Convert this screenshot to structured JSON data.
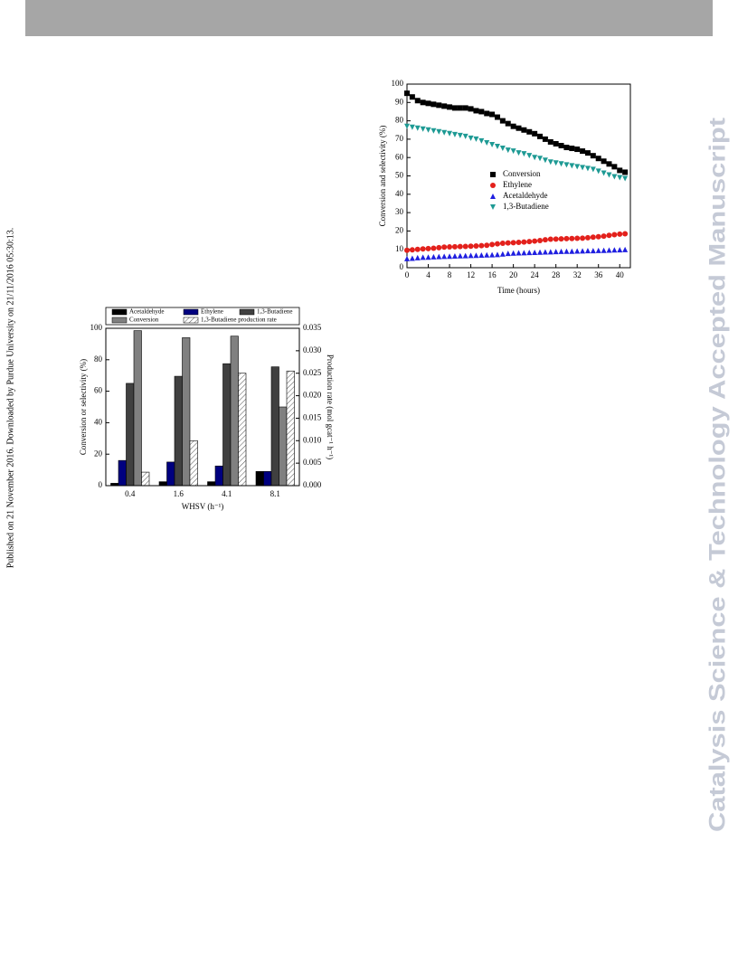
{
  "sidebar_text": "Published on 21 November 2016. Downloaded by Purdue University on 21/11/2016 05:30:13.",
  "watermark": "Catalysis Science & Technology Accepted Manuscript",
  "chart_data": [
    {
      "type": "scatter",
      "x_label": "Time (hours)",
      "y_label": "Conversion and selectivity (%)",
      "x": [
        0,
        1,
        2,
        3,
        4,
        5,
        6,
        7,
        8,
        9,
        10,
        11,
        12,
        13,
        14,
        15,
        16,
        17,
        18,
        19,
        20,
        21,
        22,
        23,
        24,
        25,
        26,
        27,
        28,
        29,
        30,
        31,
        32,
        33,
        34,
        35,
        36,
        37,
        38,
        39,
        40,
        41
      ],
      "xlim": [
        0,
        42
      ],
      "xticks": [
        0,
        4,
        8,
        12,
        16,
        20,
        24,
        28,
        32,
        36,
        40
      ],
      "ylim": [
        0,
        100
      ],
      "yticks": [
        0,
        10,
        20,
        30,
        40,
        50,
        60,
        70,
        80,
        90,
        100
      ],
      "legend": "center",
      "series": [
        {
          "name": "Conversion",
          "color": "#000000",
          "marker": "square",
          "values": [
            95,
            93,
            91,
            90,
            89.5,
            89,
            88.5,
            88,
            87.5,
            87,
            87,
            87,
            86.5,
            85.5,
            85,
            84,
            83.5,
            82,
            80,
            78.5,
            77,
            76,
            75,
            74,
            73,
            71.5,
            70,
            68.5,
            67.5,
            66.5,
            65.5,
            65,
            64.5,
            63.5,
            62.5,
            61,
            59.5,
            58,
            56.5,
            55,
            53,
            52
          ]
        },
        {
          "name": "Ethylene",
          "color": "#e3211c",
          "marker": "circle",
          "values": [
            9.5,
            9.7,
            10,
            10.2,
            10.4,
            10.6,
            10.9,
            11.2,
            11.3,
            11.4,
            11.5,
            11.6,
            11.7,
            11.8,
            12,
            12.2,
            12.6,
            13,
            13.3,
            13.5,
            13.6,
            13.8,
            14,
            14.2,
            14.5,
            14.8,
            15.2,
            15.5,
            15.6,
            15.7,
            15.8,
            15.9,
            16,
            16.1,
            16.3,
            16.6,
            16.9,
            17.2,
            17.6,
            18,
            18.3,
            18.5
          ]
        },
        {
          "name": "Acetaldehyde",
          "color": "#1f1fe0",
          "marker": "triangle-up",
          "values": [
            5,
            5.2,
            5.5,
            5.7,
            5.8,
            6,
            6.1,
            6.2,
            6.3,
            6.4,
            6.5,
            6.6,
            6.7,
            6.8,
            6.9,
            7,
            7.1,
            7.2,
            7.5,
            7.8,
            8,
            8.1,
            8.2,
            8.3,
            8.4,
            8.5,
            8.6,
            8.7,
            8.8,
            8.9,
            9,
            9,
            9.1,
            9.2,
            9.3,
            9.3,
            9.4,
            9.5,
            9.6,
            9.7,
            9.8,
            9.9
          ]
        },
        {
          "name": "1,3-Butadiene",
          "color": "#1e9a94",
          "marker": "triangle-down",
          "values": [
            77,
            76.5,
            76,
            75.5,
            75,
            74.5,
            74,
            73.5,
            73,
            72.5,
            72,
            71.5,
            70.5,
            70,
            69,
            68,
            67,
            66,
            65,
            64,
            63.5,
            62.5,
            62,
            61,
            60,
            59.5,
            58.5,
            57.5,
            57,
            56.5,
            56,
            55.5,
            55,
            54.5,
            54,
            53.5,
            52.5,
            51.5,
            50.5,
            49.5,
            49,
            48.5
          ]
        }
      ]
    },
    {
      "type": "bar",
      "x_label": "WHSV (h⁻¹)",
      "y_label": "Conversion or selectivity (%)",
      "y2_label": "Production rate (mol gcat⁻¹ h⁻¹)",
      "categories": [
        "0.4",
        "1.6",
        "4.1",
        "8.1"
      ],
      "ylim": [
        0,
        100
      ],
      "yticks": [
        0,
        20,
        40,
        60,
        80,
        100
      ],
      "y2lim": [
        0,
        0.035
      ],
      "y2ticks": [
        {
          "value": 0,
          "label": "0.000"
        },
        {
          "value": 0.005,
          "label": "0.005"
        },
        {
          "value": 0.01,
          "label": "0.010"
        },
        {
          "value": 0.015,
          "label": "0.015"
        },
        {
          "value": 0.02,
          "label": "0.020"
        },
        {
          "value": 0.025,
          "label": "0.025"
        },
        {
          "value": 0.03,
          "label": "0.030"
        },
        {
          "value": 0.035,
          "label": "0.035"
        }
      ],
      "legend": "top",
      "series": [
        {
          "name": "Acetaldehyde",
          "color": "#000000",
          "values": [
            1.5,
            2.5,
            2.5,
            9
          ]
        },
        {
          "name": "Ethylene",
          "color": "#00007f",
          "values": [
            16,
            15,
            12.5,
            9
          ]
        },
        {
          "name": "1,3-Butadiene",
          "color": "#404040",
          "values": [
            65,
            69.5,
            77.5,
            75.5
          ]
        },
        {
          "name": "Conversion",
          "color": "#808080",
          "values": [
            98.5,
            94,
            95,
            50
          ]
        },
        {
          "name": "1,3-Butadiene production rate",
          "color": "#ffffff",
          "pattern": "hatch",
          "axis": "y2",
          "values": [
            0.003,
            0.01,
            0.025,
            0.0255
          ]
        }
      ]
    }
  ]
}
